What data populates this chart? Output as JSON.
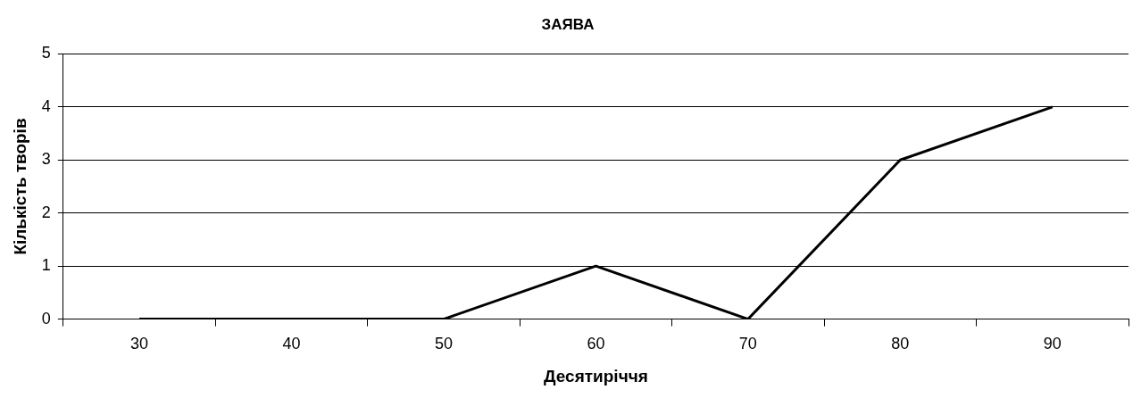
{
  "chart_data": {
    "type": "line",
    "title": "ЗАЯВА",
    "xlabel": "Десятиріччя",
    "ylabel": "Кількість творів",
    "categories": [
      "30",
      "40",
      "50",
      "60",
      "70",
      "80",
      "90"
    ],
    "series": [
      {
        "color": "#000000",
        "values": [
          0,
          0,
          0,
          1,
          0,
          3,
          4
        ]
      }
    ],
    "ylim": [
      0,
      5
    ],
    "yticks": [
      0,
      1,
      2,
      3,
      4,
      5
    ],
    "grid": "y",
    "legend": false,
    "marker": "none",
    "line_style": "solid"
  }
}
